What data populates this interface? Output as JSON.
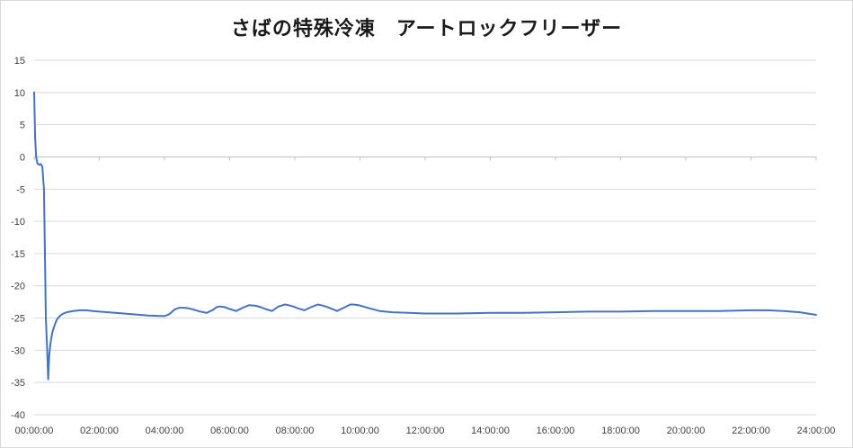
{
  "chart_data": {
    "type": "line",
    "title": "さばの特殊冷凍　アートロックフリーザー",
    "xlabel": "",
    "ylabel": "",
    "xlim": [
      0,
      24
    ],
    "ylim": [
      -40,
      15
    ],
    "y_ticks": [
      15,
      10,
      5,
      0,
      -5,
      -10,
      -15,
      -20,
      -25,
      -30,
      -35,
      -40
    ],
    "x_ticks": [
      {
        "value": 0,
        "label": "00:00:00"
      },
      {
        "value": 2,
        "label": "02:00:00"
      },
      {
        "value": 4,
        "label": "04:00:00"
      },
      {
        "value": 6,
        "label": "06:00:00"
      },
      {
        "value": 8,
        "label": "08:00:00"
      },
      {
        "value": 10,
        "label": "10:00:00"
      },
      {
        "value": 12,
        "label": "12:00:00"
      },
      {
        "value": 14,
        "label": "14:00:00"
      },
      {
        "value": 16,
        "label": "16:00:00"
      },
      {
        "value": 18,
        "label": "18:00:00"
      },
      {
        "value": 20,
        "label": "20:00:00"
      },
      {
        "value": 22,
        "label": "22:00:00"
      },
      {
        "value": 24,
        "label": "24:00:00"
      }
    ],
    "grid": true,
    "legend": "none",
    "series": [
      {
        "color": "#4472c4",
        "x": [
          0,
          0.03,
          0.06,
          0.1,
          0.15,
          0.2,
          0.25,
          0.3,
          0.33,
          0.36,
          0.4,
          0.43,
          0.46,
          0.5,
          0.53,
          0.56,
          0.6,
          0.65,
          0.7,
          0.8,
          0.9,
          1.0,
          1.1,
          1.2,
          1.4,
          1.6,
          1.8,
          2.0,
          2.5,
          3.0,
          3.5,
          4.0,
          4.15,
          4.3,
          4.45,
          4.6,
          4.75,
          4.9,
          5.1,
          5.3,
          5.5,
          5.6,
          5.7,
          5.85,
          6.0,
          6.2,
          6.4,
          6.6,
          6.8,
          6.95,
          7.1,
          7.3,
          7.5,
          7.7,
          7.8,
          7.95,
          8.1,
          8.3,
          8.5,
          8.7,
          8.8,
          8.95,
          9.1,
          9.3,
          9.5,
          9.7,
          9.8,
          9.95,
          10.1,
          10.3,
          10.6,
          11.0,
          11.5,
          12.0,
          13.0,
          14.0,
          15.0,
          16.0,
          17.0,
          18.0,
          19.0,
          20.0,
          21.0,
          22.0,
          22.5,
          23.0,
          23.5,
          24.0
        ],
        "y": [
          10,
          3,
          0,
          -1,
          -1.2,
          -1.1,
          -1.5,
          -5,
          -15,
          -25,
          -30,
          -34.5,
          -31,
          -29,
          -28,
          -27.2,
          -26.5,
          -25.8,
          -25.2,
          -24.6,
          -24.3,
          -24.1,
          -24.0,
          -23.9,
          -23.8,
          -23.8,
          -23.9,
          -24.0,
          -24.2,
          -24.4,
          -24.6,
          -24.7,
          -24.4,
          -23.7,
          -23.4,
          -23.4,
          -23.5,
          -23.7,
          -24.0,
          -24.2,
          -23.7,
          -23.3,
          -23.2,
          -23.3,
          -23.6,
          -23.9,
          -23.4,
          -23.0,
          -23.1,
          -23.3,
          -23.6,
          -23.9,
          -23.2,
          -22.9,
          -23.0,
          -23.2,
          -23.5,
          -23.8,
          -23.3,
          -22.9,
          -23.0,
          -23.2,
          -23.5,
          -23.9,
          -23.4,
          -22.9,
          -22.9,
          -23.0,
          -23.2,
          -23.5,
          -23.9,
          -24.1,
          -24.2,
          -24.3,
          -24.3,
          -24.2,
          -24.2,
          -24.1,
          -24.0,
          -24.0,
          -23.9,
          -23.9,
          -23.9,
          -23.8,
          -23.8,
          -23.9,
          -24.1,
          -24.5
        ]
      }
    ]
  }
}
